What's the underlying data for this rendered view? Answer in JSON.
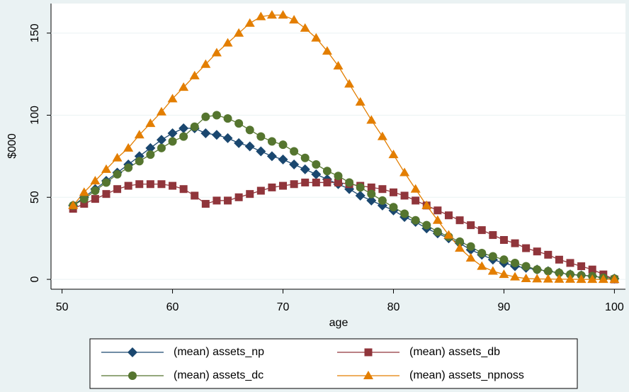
{
  "chart_data": {
    "type": "line",
    "x_label": "age",
    "y_label": "$000",
    "x": [
      51,
      52,
      53,
      54,
      55,
      56,
      57,
      58,
      59,
      60,
      61,
      62,
      63,
      64,
      65,
      66,
      67,
      68,
      69,
      70,
      71,
      72,
      73,
      74,
      75,
      76,
      77,
      78,
      79,
      80,
      81,
      82,
      83,
      84,
      85,
      86,
      87,
      88,
      89,
      90,
      91,
      92,
      93,
      94,
      95,
      96,
      97,
      98,
      99,
      100
    ],
    "xlim": [
      49,
      101
    ],
    "xticks": [
      50,
      60,
      70,
      80,
      90,
      100
    ],
    "ylim": [
      -6,
      168
    ],
    "yticks": [
      0,
      50,
      100,
      150
    ],
    "grid": true,
    "legend": "bottom",
    "series": [
      {
        "name": "(mean) assets_np",
        "color": "#1a476f",
        "marker": "diamond",
        "values": [
          45,
          50,
          55,
          60,
          65,
          70,
          75,
          80,
          85,
          89,
          92,
          92,
          89,
          88,
          86,
          83,
          81,
          78,
          75,
          73,
          70,
          67,
          64,
          61,
          58,
          55,
          51,
          48,
          45,
          42,
          38,
          35,
          31,
          28,
          25,
          22,
          18,
          15,
          12,
          10,
          8,
          7,
          6,
          5,
          4,
          3,
          2.5,
          2,
          1,
          0.5
        ]
      },
      {
        "name": "(mean) assets_db",
        "color": "#90353b",
        "marker": "square",
        "values": [
          43,
          46,
          49,
          52,
          55,
          57,
          58,
          58,
          58,
          57,
          55,
          51,
          46,
          48,
          48,
          50,
          52,
          54,
          56,
          57,
          58,
          59,
          59,
          59,
          59,
          58,
          57,
          56,
          55,
          53,
          51,
          48,
          45,
          42,
          39,
          36,
          33,
          30,
          27,
          24,
          22,
          19,
          17,
          15,
          12,
          10,
          8,
          6,
          3,
          0
        ]
      },
      {
        "name": "(mean) assets_dc",
        "color": "#55752f",
        "marker": "circle",
        "values": [
          45,
          49,
          54,
          59,
          64,
          68,
          72,
          76,
          80,
          84,
          87,
          93,
          99,
          100,
          98,
          95,
          91,
          87,
          84,
          82,
          78,
          74,
          70,
          66,
          63,
          59,
          56,
          52,
          48,
          44,
          40,
          36,
          33,
          29,
          26,
          23,
          20,
          16,
          14,
          12,
          10,
          8,
          6,
          5,
          4,
          3,
          2.5,
          2,
          1,
          0.5
        ]
      },
      {
        "name": "(mean) assets_npnoss",
        "color": "#e37e00",
        "marker": "triangle",
        "values": [
          45,
          53,
          60,
          67,
          74,
          80,
          88,
          95,
          102,
          110,
          117,
          124,
          131,
          138,
          144,
          150,
          156,
          160,
          161,
          161,
          158,
          153,
          147,
          139,
          130,
          119,
          108,
          97,
          87,
          76,
          65,
          55,
          45,
          36,
          27,
          19,
          13,
          8,
          5,
          3,
          1.5,
          0.5,
          0.3,
          0.2,
          0.1,
          0.1,
          0,
          0,
          0,
          0
        ]
      }
    ]
  }
}
